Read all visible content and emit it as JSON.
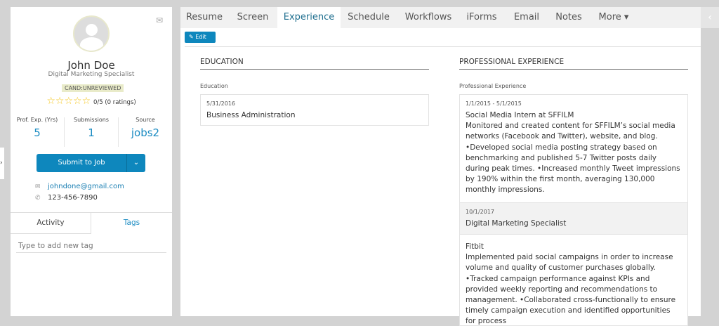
{
  "candidate": {
    "name": "John Doe",
    "title": "Digital Marketing Specialist",
    "status": "CAND:UNREVIEWED",
    "stars": 0,
    "rating_text": "0/5 (0 ratings)",
    "stats": [
      {
        "label": "Prof. Exp. (Yrs)",
        "value": "5"
      },
      {
        "label": "Submissions",
        "value": "1"
      },
      {
        "label": "Source",
        "value": "jobs2"
      }
    ],
    "submit_label": "Submit to Job",
    "email": "johndone@gmail.com",
    "phone": "123-456-7890"
  },
  "left_tabs": [
    {
      "label": "Activity"
    },
    {
      "label": "Tags"
    }
  ],
  "tag_placeholder": "Type to add new tag",
  "tabs": [
    {
      "label": "Resume"
    },
    {
      "label": "Screen"
    },
    {
      "label": "Experience"
    },
    {
      "label": "Schedule"
    },
    {
      "label": "Workflows"
    },
    {
      "label": "iForms"
    },
    {
      "label": "Email"
    },
    {
      "label": "Notes"
    },
    {
      "label": "More ▾"
    }
  ],
  "active_tab": "Experience",
  "edit_label": "Edit",
  "education": {
    "heading": "EDUCATION",
    "field_label": "Education",
    "entries": [
      {
        "date": "5/31/2016",
        "text": "Business Administration"
      }
    ]
  },
  "experience": {
    "heading": "PROFESSIONAL EXPERIENCE",
    "field_label": "Professional Experience",
    "entries": [
      {
        "date": "1/1/2015 - 5/1/2015",
        "text": "Social Media Intern at SFFILM\nMonitored and created content for SFFILM’s social media networks (Facebook and Twitter), website, and blog. •Developed social media posting strategy based on benchmarking and published 5-7 Twitter posts daily during peak times. •Increased monthly Tweet impressions by 190% within the first month, averaging 130,000 monthly impressions."
      },
      {
        "date": "10/1/2017",
        "text": "Digital Marketing Specialist"
      },
      {
        "date": "",
        "text": "Fitbit\nImplemented paid social campaigns in order to increase volume and quality of customer purchases globally. •Tracked campaign performance against KPIs and provided weekly reporting and recommendations to management. •Collaborated cross-functionally to ensure timely campaign execution and identified opportunities for process"
      }
    ]
  },
  "colors": {
    "accent": "#0e87bd",
    "link": "#1a8bc2",
    "star": "#f5c518"
  }
}
